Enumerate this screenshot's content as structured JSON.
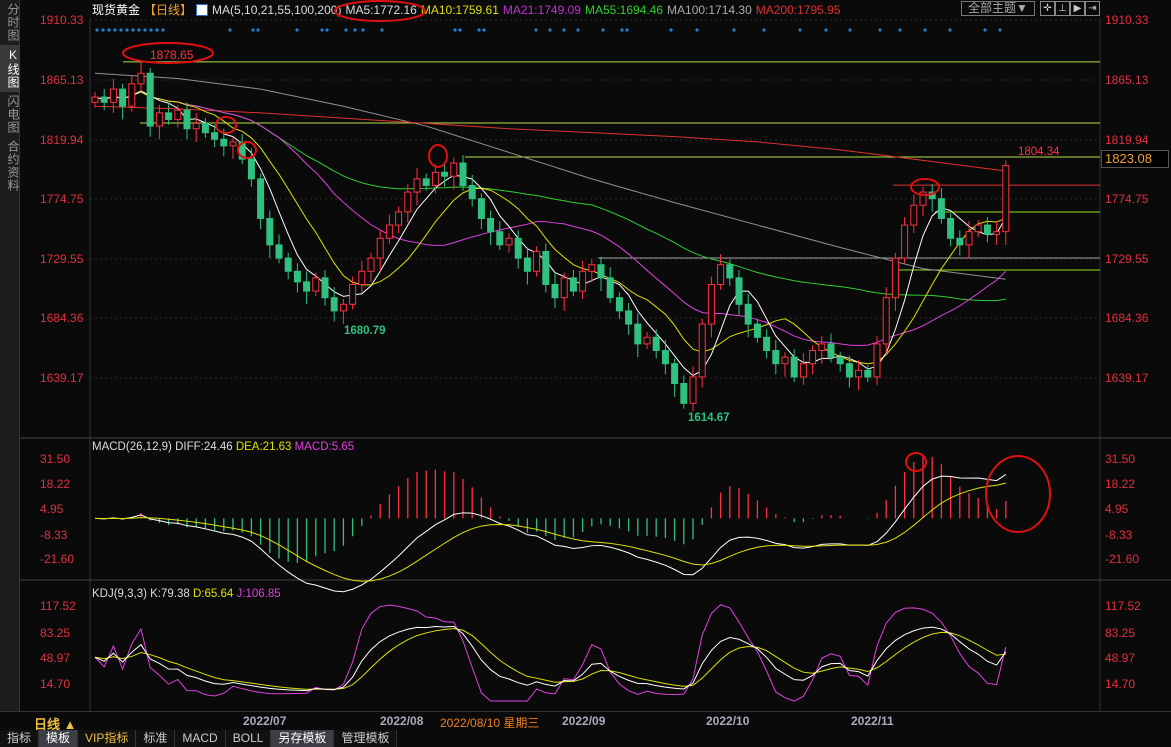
{
  "side_tabs": [
    {
      "label": "分时图",
      "active": false
    },
    {
      "label": "K线图",
      "active": true
    },
    {
      "label": "闪电图",
      "active": false
    },
    {
      "label": "合约资料",
      "active": false
    }
  ],
  "header": {
    "instrument": "现货黄金",
    "period": "【日线】",
    "ma_params": "MA(5,10,21,55,100,200)",
    "ma5": "MA5:1772.16",
    "ma10": "MA10:1759.61",
    "ma21": "MA21:1749.09",
    "ma55": "MA55:1694.46",
    "ma100": "MA100:1714.30",
    "ma200": "MA200:1795.95"
  },
  "toolbar": {
    "theme_label": "全部主题▼",
    "icons": [
      "crosshair-icon",
      "zoom-in-icon",
      "play-icon",
      "move-right-icon"
    ]
  },
  "price_axis": [
    "1910.33",
    "1865.13",
    "1819.94",
    "1774.75",
    "1729.55",
    "1684.36",
    "1639.17"
  ],
  "current_price": "1823.08",
  "annotations": {
    "high": "1878.65",
    "low1": "1680.79",
    "low2": "1614.67",
    "last_high": "1804.34"
  },
  "macd": {
    "title": "MACD(26,12,9)",
    "diff": "DIFF:24.46",
    "dea": "DEA:21.63",
    "macd": "MACD:5.65",
    "axis": [
      "31.50",
      "18.22",
      "4.95",
      "-8.33",
      "-21.60"
    ]
  },
  "kdj": {
    "title": "KDJ(9,3,3)",
    "k": "K:79.38",
    "d": "D:65.64",
    "j": "J:106.85",
    "axis": [
      "117.52",
      "83.25",
      "48.97",
      "14.70"
    ]
  },
  "time_axis": {
    "period_label": "日线 ▲",
    "labels": [
      "2022/07",
      "2022/08",
      "2022/09",
      "2022/10",
      "2022/11"
    ],
    "cursor_date": "2022/08/10 星期三"
  },
  "bottom_tabs": [
    {
      "label": "指标",
      "style": ""
    },
    {
      "label": "模板",
      "style": "dark"
    },
    {
      "label": "VIP指标",
      "style": "vip"
    },
    {
      "label": "标准",
      "style": ""
    },
    {
      "label": "MACD",
      "style": ""
    },
    {
      "label": "BOLL",
      "style": ""
    },
    {
      "label": "另存模板",
      "style": "dark"
    },
    {
      "label": "管理模板",
      "style": ""
    }
  ],
  "colors": {
    "up": "#ff3040",
    "down": "#30c080",
    "ma5": "#ffffff",
    "ma10": "#e0e000",
    "ma21": "#e040e0",
    "ma55": "#30d030",
    "ma100": "#909090",
    "ma200": "#e03030",
    "support": "#90e020"
  },
  "chart_data": {
    "type": "candlestick",
    "price_range": [
      1639.17,
      1910.33
    ],
    "closes": [
      1852,
      1848,
      1858,
      1845,
      1862,
      1870,
      1830,
      1840,
      1835,
      1842,
      1828,
      1832,
      1825,
      1820,
      1815,
      1818,
      1805,
      1790,
      1760,
      1740,
      1730,
      1720,
      1712,
      1705,
      1715,
      1700,
      1690,
      1695,
      1710,
      1720,
      1730,
      1745,
      1755,
      1765,
      1780,
      1790,
      1785,
      1795,
      1792,
      1802,
      1785,
      1775,
      1760,
      1750,
      1740,
      1745,
      1730,
      1720,
      1735,
      1710,
      1700,
      1715,
      1705,
      1720,
      1725,
      1715,
      1700,
      1690,
      1680,
      1665,
      1670,
      1660,
      1650,
      1635,
      1620,
      1640,
      1680,
      1710,
      1725,
      1715,
      1695,
      1680,
      1670,
      1660,
      1650,
      1655,
      1640,
      1650,
      1660,
      1665,
      1655,
      1650,
      1640,
      1645,
      1640,
      1665,
      1700,
      1730,
      1755,
      1770,
      1780,
      1775,
      1760,
      1745,
      1740,
      1750,
      1755,
      1748,
      1750,
      1800
    ],
    "ma100": [
      1870,
      1866,
      1858,
      1845,
      1830,
      1810,
      1790,
      1772,
      1755,
      1738,
      1722,
      1714
    ],
    "ma200": [
      1845,
      1843,
      1840,
      1836,
      1832,
      1828,
      1825,
      1822,
      1818,
      1812,
      1804,
      1796
    ],
    "horizontal_lines": [
      1878.65,
      1832.3,
      1806.6,
      1785.3,
      1764.9,
      1730.1,
      1721.0
    ]
  }
}
